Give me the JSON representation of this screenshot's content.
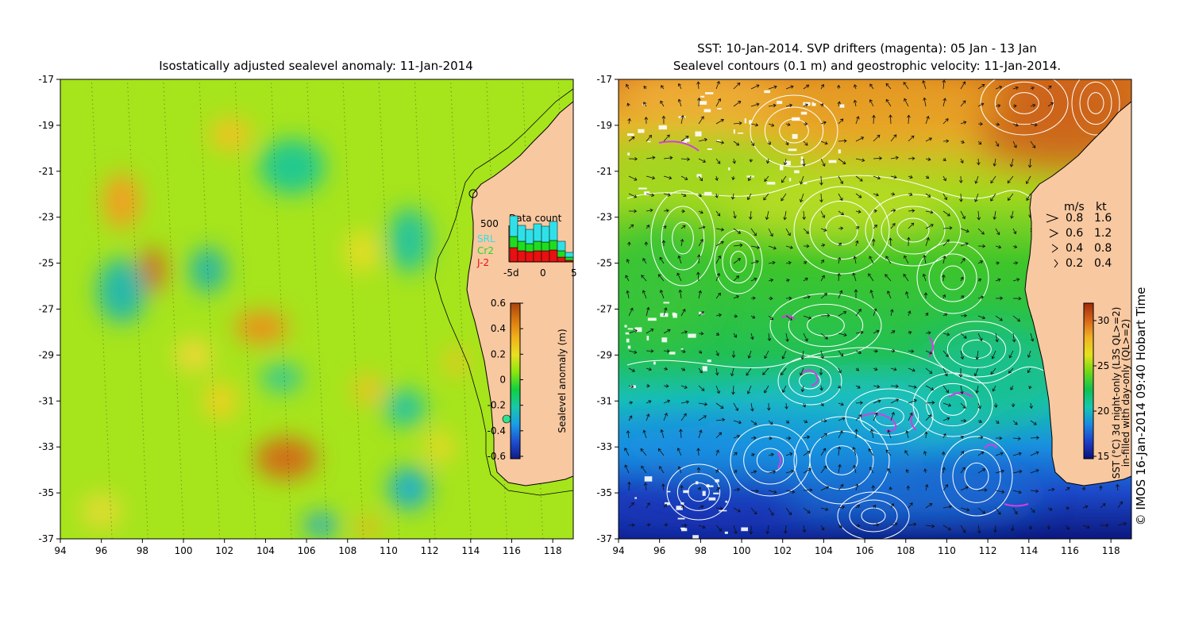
{
  "left_map": {
    "title": "Isostatically adjusted sealevel anomaly: 11-Jan-2014",
    "colorbar": {
      "label": "Sealevel anomaly (m)",
      "ticks": [
        "0.6",
        "0.4",
        "0.2",
        "0",
        "-0.2",
        "-0.4",
        "-0.6"
      ],
      "colors": [
        "#a8440e",
        "#d97a10",
        "#f2b21a",
        "#e8e020",
        "#8be60e",
        "#10d040",
        "#18c8a8",
        "#1a9ee8",
        "#1e50d0",
        "#101a88"
      ]
    },
    "data_count": {
      "title": "Data count",
      "max_label": "500",
      "legend": [
        {
          "label": "SRL",
          "color": "#30e0e8"
        },
        {
          "label": "Cr2",
          "color": "#20dc20"
        },
        {
          "label": "J-2",
          "color": "#e81010"
        }
      ],
      "xticks": [
        "-5d",
        "0",
        "5"
      ]
    },
    "blobs": [
      {
        "lon": 97,
        "lat": -22.3,
        "rx": 0.9,
        "ry": 1.2,
        "c": "#f0a020"
      },
      {
        "lon": 98.5,
        "lat": -25.3,
        "rx": 0.6,
        "ry": 1.0,
        "c": "#cf6a12"
      },
      {
        "lon": 103.8,
        "lat": -27.8,
        "rx": 1.3,
        "ry": 0.7,
        "c": "#e9931a"
      },
      {
        "lon": 105,
        "lat": -33.5,
        "rx": 1.5,
        "ry": 0.9,
        "c": "#d07015"
      },
      {
        "lon": 102.3,
        "lat": -19.4,
        "rx": 1.0,
        "ry": 0.7,
        "c": "#f2c224"
      },
      {
        "lon": 105.3,
        "lat": -20.8,
        "rx": 1.6,
        "ry": 1.2,
        "c": "#22c98e"
      },
      {
        "lon": 97,
        "lat": -26.2,
        "rx": 1.2,
        "ry": 1.4,
        "c": "#25b9a8"
      },
      {
        "lon": 101.2,
        "lat": -25.3,
        "rx": 0.9,
        "ry": 1.0,
        "c": "#2ab8a0"
      },
      {
        "lon": 111,
        "lat": -24,
        "rx": 1.0,
        "ry": 1.4,
        "c": "#25c49a"
      },
      {
        "lon": 111,
        "lat": -34.8,
        "rx": 1.0,
        "ry": 0.9,
        "c": "#1fb0c8"
      },
      {
        "lon": 106.7,
        "lat": -36.4,
        "rx": 0.8,
        "ry": 0.5,
        "c": "#1fa8d0"
      },
      {
        "lon": 110.8,
        "lat": -31.3,
        "rx": 1.0,
        "ry": 0.8,
        "c": "#28c4a0"
      },
      {
        "lon": 104.8,
        "lat": -30,
        "rx": 1.0,
        "ry": 0.6,
        "c": "#30c898"
      },
      {
        "lon": 101.8,
        "lat": -31,
        "rx": 0.8,
        "ry": 0.8,
        "c": "#f0d020"
      },
      {
        "lon": 109,
        "lat": -30.5,
        "rx": 0.7,
        "ry": 0.6,
        "c": "#f0c020"
      },
      {
        "lon": 113.3,
        "lat": -29.3,
        "rx": 0.5,
        "ry": 0.6,
        "c": "#f2c224"
      },
      {
        "lon": 100.5,
        "lat": -29,
        "rx": 0.9,
        "ry": 0.7,
        "c": "#f0d838"
      },
      {
        "lon": 108.7,
        "lat": -24.5,
        "rx": 0.8,
        "ry": 0.9,
        "c": "#e8dc28"
      },
      {
        "lon": 96,
        "lat": -35.8,
        "rx": 1.0,
        "ry": 0.8,
        "c": "#e0dc30"
      },
      {
        "lon": 112.5,
        "lat": -33,
        "rx": 0.7,
        "ry": 0.7,
        "c": "#e8d828"
      },
      {
        "lon": 109,
        "lat": -36.5,
        "rx": 0.6,
        "ry": 0.4,
        "c": "#f0b020"
      }
    ]
  },
  "right_map": {
    "title_line1": "SST: 10-Jan-2014. SVP drifters (magenta): 05 Jan - 13 Jan",
    "title_line2": "Sealevel contours (0.1 m) and geostrophic velocity: 11-Jan-2014.",
    "colorbar": {
      "label_line1": "SST (°C) 3d night-only (L3S QL>=2)",
      "label_line2": "in-filled with day-only (QL>=2)",
      "ticks": [
        "30",
        "25",
        "20",
        "15"
      ],
      "colors": [
        "#a02a0a",
        "#d8661a",
        "#f2b224",
        "#e4e21c",
        "#6cd818",
        "#10c050",
        "#14c8b0",
        "#1a8ae0",
        "#1c40c8",
        "#0c1078"
      ]
    },
    "velocity_legend": {
      "header_ms": "m/s",
      "header_kt": "kt",
      "rows": [
        {
          "ms": "0.8",
          "kt": "1.6"
        },
        {
          "ms": "0.6",
          "kt": "1.2"
        },
        {
          "ms": "0.4",
          "kt": "0.8"
        },
        {
          "ms": "0.2",
          "kt": "0.4"
        }
      ]
    },
    "credit": "© IMOS 16-Jan-2014 09:40 Hobart Time"
  },
  "axes": {
    "lon_ticks": [
      "94",
      "96",
      "98",
      "100",
      "102",
      "104",
      "106",
      "108",
      "110",
      "112",
      "114",
      "116",
      "118"
    ],
    "lat_ticks": [
      "-17",
      "-19",
      "-21",
      "-23",
      "-25",
      "-27",
      "-29",
      "-31",
      "-33",
      "-35",
      "-37"
    ],
    "lon_range": [
      94,
      119
    ],
    "lat_range": [
      -37,
      -17
    ]
  },
  "colors": {
    "land": "#f8c8a0",
    "coast": "#000000",
    "contour": "#ffffff",
    "drifter": "#d040e0",
    "arrow": "#101010"
  }
}
